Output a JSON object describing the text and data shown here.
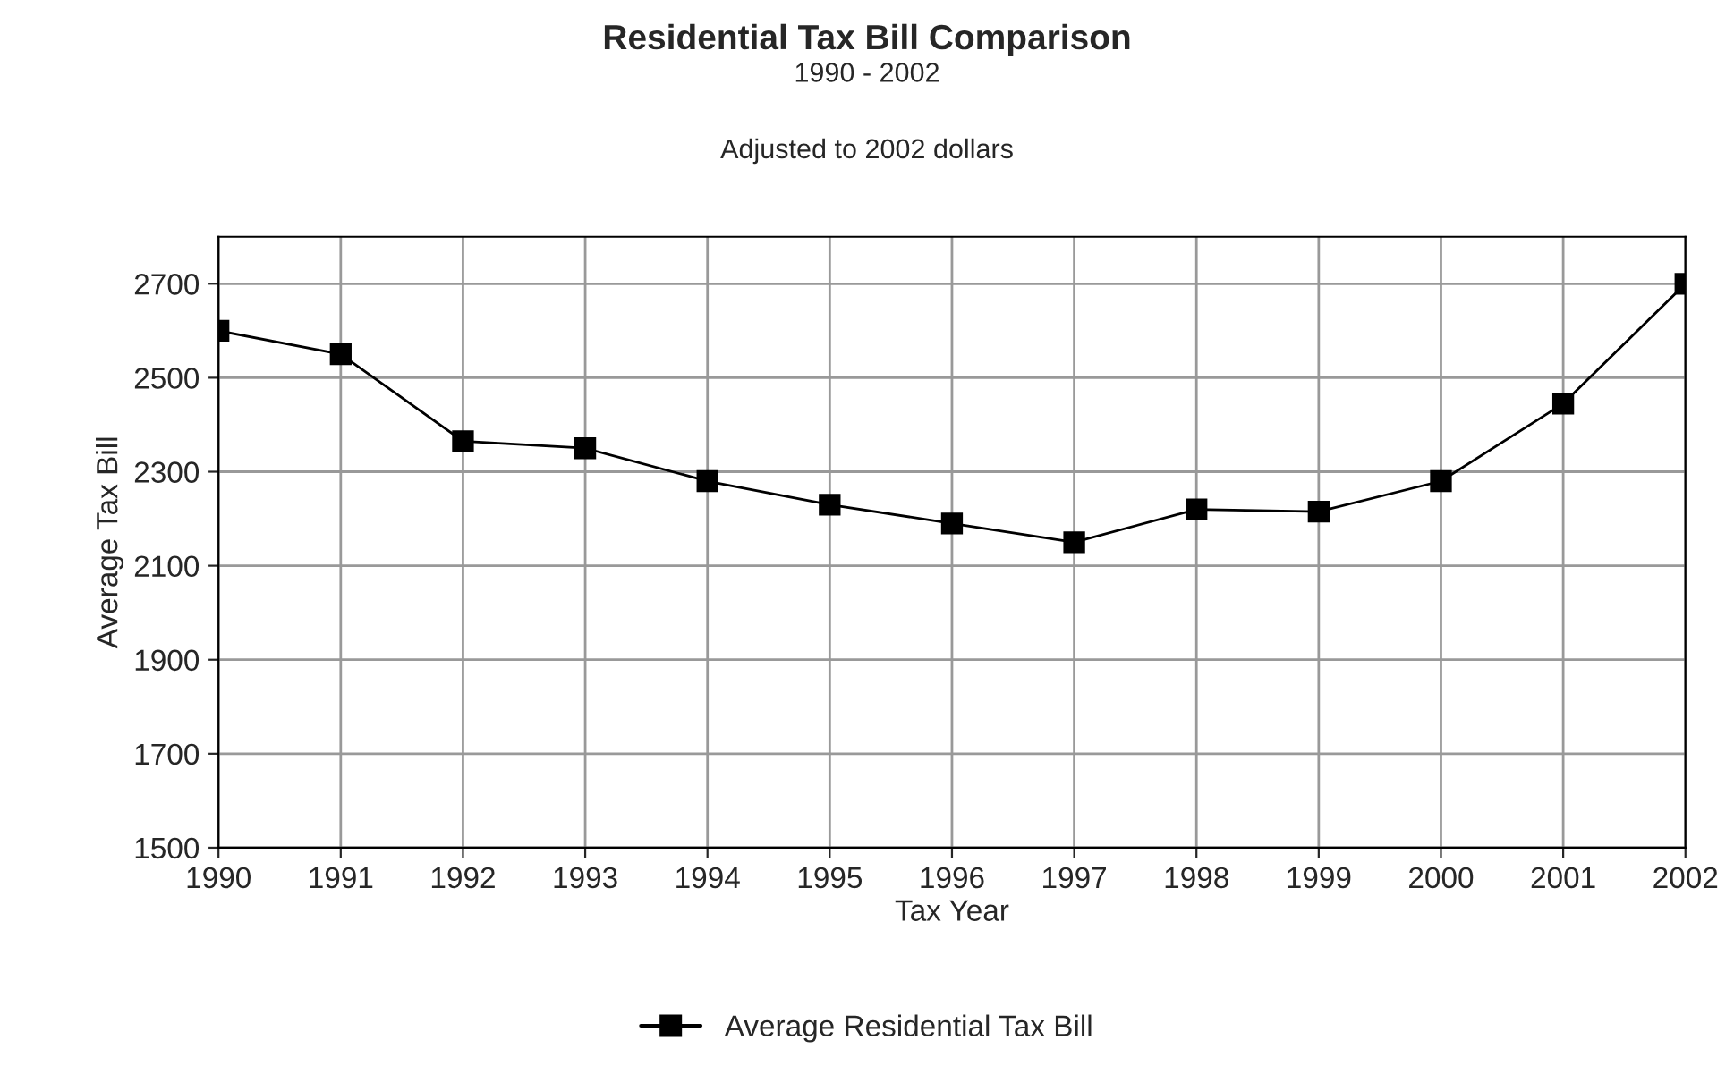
{
  "chart_data": {
    "type": "line",
    "title": "Residential Tax Bill Comparison",
    "subtitle": "1990 - 2002",
    "annotations": [
      "Adjusted to 2002 dollars"
    ],
    "xlabel": "Tax Year",
    "ylabel": "Average Tax Bill",
    "categories": [
      "1990",
      "1991",
      "1992",
      "1993",
      "1994",
      "1995",
      "1996",
      "1997",
      "1998",
      "1999",
      "2000",
      "2001",
      "2002"
    ],
    "series": [
      {
        "name": "Average Residential Tax Bill",
        "color": "#000000",
        "values": [
          2600,
          2550,
          2365,
          2350,
          2280,
          2230,
          2190,
          2150,
          2220,
          2215,
          2280,
          2445,
          2700
        ]
      }
    ],
    "ylim": [
      1500,
      2800
    ],
    "yticks": [
      1500,
      1700,
      1900,
      2100,
      2300,
      2500,
      2700
    ],
    "grid": true,
    "legend": "bottom",
    "marker": "square",
    "line_style": "solid"
  }
}
